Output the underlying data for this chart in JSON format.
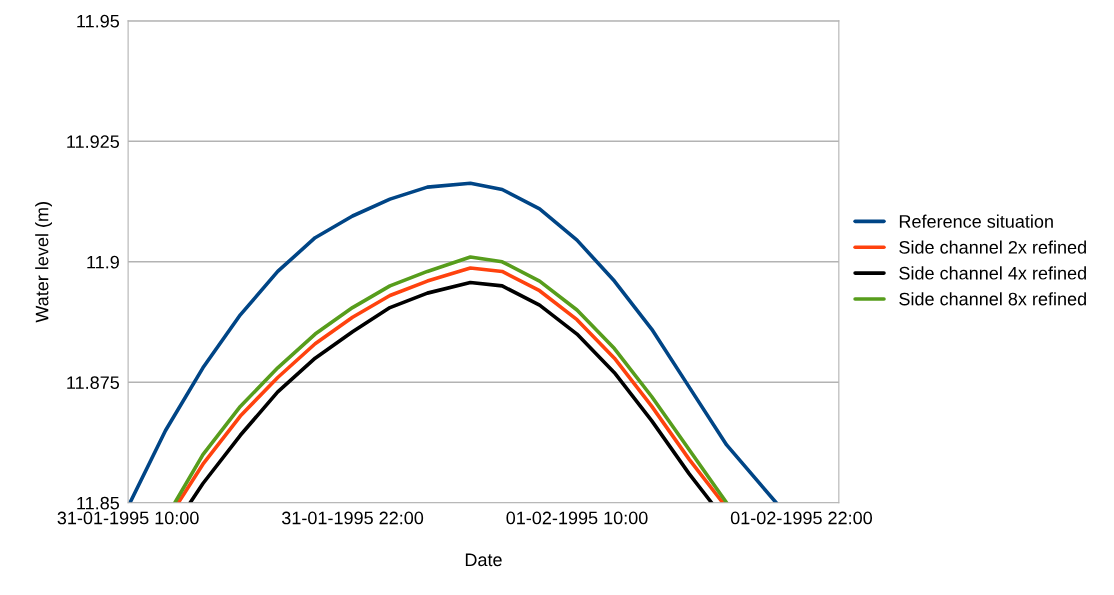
{
  "chart_data": {
    "type": "line",
    "xlabel": "Date",
    "ylabel": "Water level (m)",
    "xlim": [
      "1995-01-31T10:00",
      "1995-02-02T00:00"
    ],
    "xticks": [
      {
        "value": "1995-01-31T10:00",
        "label": "31-01-1995 10:00"
      },
      {
        "value": "1995-01-31T22:00",
        "label": "31-01-1995 22:00"
      },
      {
        "value": "1995-02-01T10:00",
        "label": "01-02-1995 10:00"
      },
      {
        "value": "1995-02-01T22:00",
        "label": "01-02-1995 22:00"
      }
    ],
    "ylim": [
      11.85,
      11.95
    ],
    "yticks": [
      11.85,
      11.875,
      11.9,
      11.925,
      11.95
    ],
    "grid": "y",
    "legend": "right",
    "marker": "none",
    "line_style": "solid",
    "series": [
      {
        "name": "Reference situation",
        "color": "#004586",
        "x": [
          "1995-01-31T10:06",
          "1995-01-31T12:00",
          "1995-01-31T14:00",
          "1995-01-31T16:00",
          "1995-01-31T18:00",
          "1995-01-31T20:00",
          "1995-01-31T22:00",
          "1995-02-01T00:00",
          "1995-02-01T02:00",
          "1995-02-01T04:18",
          "1995-02-01T06:00",
          "1995-02-01T08:00",
          "1995-02-01T10:00",
          "1995-02-01T12:00",
          "1995-02-01T14:00",
          "1995-02-01T16:00",
          "1995-02-01T18:00",
          "1995-02-01T20:39"
        ],
        "values": [
          11.85,
          11.865,
          11.878,
          11.889,
          11.898,
          11.905,
          11.9095,
          11.913,
          11.9155,
          11.9163,
          11.915,
          11.911,
          11.9045,
          11.896,
          11.886,
          11.874,
          11.862,
          11.85
        ]
      },
      {
        "name": "Side channel 2x refined",
        "color": "#ff420e",
        "x": [
          "1995-01-31T12:41",
          "1995-01-31T14:00",
          "1995-01-31T16:00",
          "1995-01-31T18:00",
          "1995-01-31T20:00",
          "1995-01-31T22:00",
          "1995-02-01T00:00",
          "1995-02-01T02:00",
          "1995-02-01T04:18",
          "1995-02-01T06:00",
          "1995-02-01T08:00",
          "1995-02-01T10:00",
          "1995-02-01T12:00",
          "1995-02-01T14:00",
          "1995-02-01T16:00",
          "1995-02-01T17:48"
        ],
        "values": [
          11.85,
          11.858,
          11.868,
          11.876,
          11.883,
          11.8885,
          11.893,
          11.896,
          11.8987,
          11.898,
          11.894,
          11.888,
          11.88,
          11.87,
          11.859,
          11.85
        ]
      },
      {
        "name": "Side channel 4x refined",
        "color": "#000000",
        "x": [
          "1995-01-31T13:19",
          "1995-01-31T14:00",
          "1995-01-31T16:00",
          "1995-01-31T18:00",
          "1995-01-31T20:00",
          "1995-01-31T22:00",
          "1995-02-01T00:00",
          "1995-02-01T02:00",
          "1995-02-01T04:18",
          "1995-02-01T06:00",
          "1995-02-01T08:00",
          "1995-02-01T10:00",
          "1995-02-01T12:00",
          "1995-02-01T14:00",
          "1995-02-01T16:00",
          "1995-02-01T17:12"
        ],
        "values": [
          11.85,
          11.854,
          11.864,
          11.873,
          11.88,
          11.8855,
          11.8905,
          11.8935,
          11.8957,
          11.895,
          11.891,
          11.885,
          11.877,
          11.867,
          11.856,
          11.85
        ]
      },
      {
        "name": "Side channel 8x refined",
        "color": "#579d1c",
        "x": [
          "1995-01-31T12:30",
          "1995-01-31T14:00",
          "1995-01-31T16:00",
          "1995-01-31T18:00",
          "1995-01-31T20:00",
          "1995-01-31T22:00",
          "1995-02-01T00:00",
          "1995-02-01T02:00",
          "1995-02-01T04:18",
          "1995-02-01T06:00",
          "1995-02-01T08:00",
          "1995-02-01T10:00",
          "1995-02-01T12:00",
          "1995-02-01T14:00",
          "1995-02-01T16:00",
          "1995-02-01T18:00"
        ],
        "values": [
          11.85,
          11.86,
          11.87,
          11.878,
          11.885,
          11.8905,
          11.895,
          11.898,
          11.901,
          11.9,
          11.896,
          11.89,
          11.882,
          11.872,
          11.861,
          11.85
        ]
      }
    ]
  }
}
